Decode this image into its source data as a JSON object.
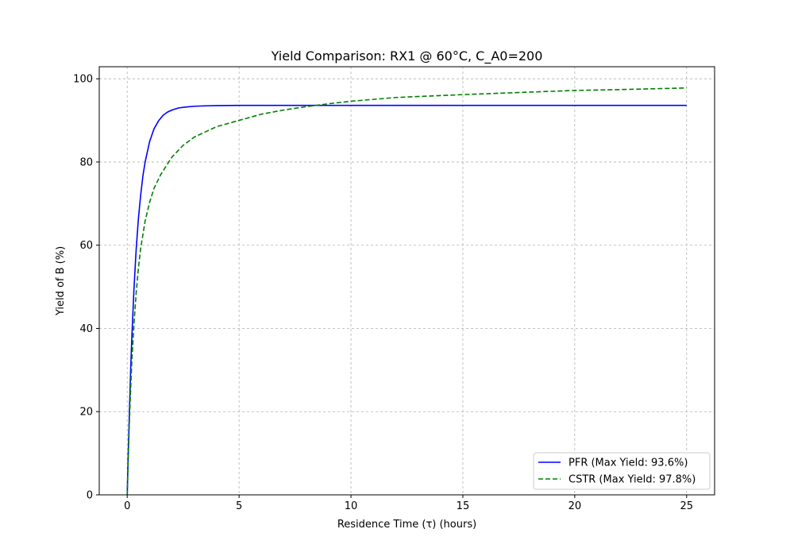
{
  "chart_data": {
    "type": "line",
    "title": "Yield Comparison: RX1 @ 60°C, C_A0=200",
    "xlabel": "Residence Time (τ) (hours)",
    "ylabel": "Yield of B (%)",
    "xlim": [
      -1.25,
      26.25
    ],
    "ylim": [
      0,
      102.9
    ],
    "xticks": [
      0,
      5,
      10,
      15,
      20,
      25
    ],
    "xtick_labels": [
      "0",
      "5",
      "10",
      "15",
      "20",
      "25"
    ],
    "yticks": [
      0,
      20,
      40,
      60,
      80,
      100
    ],
    "ytick_labels": [
      "0",
      "20",
      "40",
      "60",
      "80",
      "100"
    ],
    "grid": true,
    "legend_position": "lower-right",
    "series": [
      {
        "name": "PFR (Max Yield: 93.6%)",
        "color": "#0000ff",
        "style": "solid",
        "x": [
          0,
          0.05,
          0.1,
          0.15,
          0.2,
          0.3,
          0.4,
          0.5,
          0.6,
          0.7,
          0.8,
          1.0,
          1.2,
          1.4,
          1.6,
          1.8,
          2.0,
          2.3,
          2.6,
          3.0,
          3.5,
          4.0,
          5.0,
          6.0,
          8.0,
          10.0,
          15.0,
          20.0,
          25.0
        ],
        "y": [
          0,
          11.0,
          20.5,
          29.3,
          37.0,
          49.3,
          59.0,
          66.4,
          72.0,
          76.6,
          80.0,
          84.9,
          88.0,
          89.9,
          91.2,
          92.0,
          92.5,
          93.0,
          93.2,
          93.4,
          93.5,
          93.55,
          93.6,
          93.6,
          93.6,
          93.6,
          93.6,
          93.6,
          93.6
        ]
      },
      {
        "name": "CSTR (Max Yield: 97.8%)",
        "color": "#008000",
        "style": "dashed",
        "x": [
          0,
          0.05,
          0.1,
          0.15,
          0.2,
          0.3,
          0.4,
          0.5,
          0.6,
          0.8,
          1.0,
          1.2,
          1.5,
          2.0,
          2.5,
          3.0,
          4.0,
          5.0,
          6.0,
          7.0,
          8.0,
          9.0,
          10.0,
          12.0,
          15.0,
          18.0,
          20.0,
          22.0,
          25.0
        ],
        "y": [
          0,
          9.5,
          18.0,
          25.0,
          31.5,
          41.0,
          48.5,
          54.5,
          59.2,
          65.8,
          70.3,
          73.7,
          77.0,
          81.2,
          84.0,
          86.0,
          88.5,
          90.0,
          91.5,
          92.5,
          93.3,
          94.0,
          94.6,
          95.5,
          96.2,
          96.8,
          97.2,
          97.4,
          97.8
        ]
      }
    ]
  }
}
